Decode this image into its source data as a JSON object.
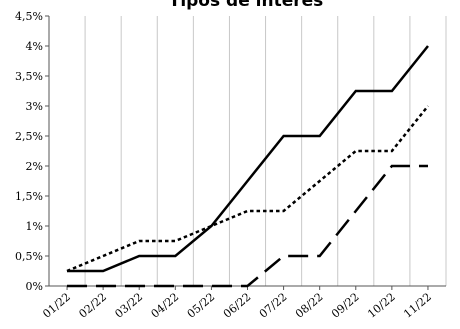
{
  "chart_data": {
    "type": "line",
    "title": "Tipos de interés",
    "xlabel": "",
    "ylabel": "",
    "categories": [
      "01/22",
      "02/22",
      "03/22",
      "04/22",
      "05/22",
      "06/22",
      "07/22",
      "08/22",
      "09/22",
      "10/22",
      "11/22"
    ],
    "y_ticks": [
      "0%",
      "0,5%",
      "1%",
      "1,5%",
      "2%",
      "2,5%",
      "3%",
      "3,5%",
      "4%",
      "4,5%"
    ],
    "ylim": [
      0,
      4.5
    ],
    "grid": "vertical",
    "legend": "none",
    "series": [
      {
        "style": "solid",
        "color": "#000000",
        "values": [
          0.25,
          0.25,
          0.5,
          0.5,
          1.0,
          1.75,
          2.5,
          2.5,
          3.25,
          3.25,
          4.0
        ]
      },
      {
        "style": "dotted",
        "color": "#000000",
        "values": [
          0.25,
          0.5,
          0.75,
          0.75,
          1.0,
          1.25,
          1.25,
          1.75,
          2.25,
          2.25,
          3.0
        ]
      },
      {
        "style": "dashed",
        "color": "#000000",
        "values": [
          0.0,
          0.0,
          0.0,
          0.0,
          0.0,
          0.0,
          0.5,
          0.5,
          1.25,
          2.0,
          2.0
        ]
      }
    ]
  }
}
